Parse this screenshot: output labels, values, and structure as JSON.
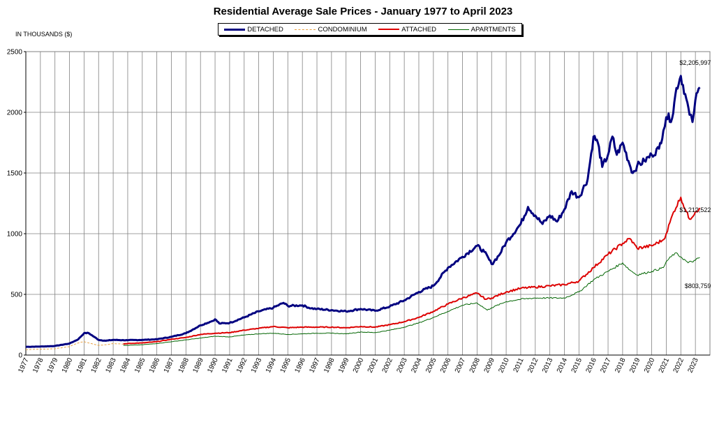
{
  "chart_data": {
    "type": "line",
    "title": "Residential Average Sale Prices  -  January 1977 to April 2023",
    "ylabel": "IN THOUSANDS ($)",
    "ylim": [
      0,
      2500
    ],
    "yticks": [
      "0",
      "500",
      "1000",
      "1500",
      "2000",
      "2500"
    ],
    "x_tick_labels": [
      "1977",
      "1978",
      "1979",
      "1980",
      "1981",
      "1982",
      "1983",
      "1984",
      "1985",
      "1986",
      "1987",
      "1988",
      "1989",
      "1990",
      "1991",
      "1992",
      "1993",
      "1994",
      "1995",
      "1996",
      "1997",
      "1998",
      "1999",
      "2000",
      "2001",
      "2002",
      "2003",
      "2004",
      "2005",
      "2006",
      "2007",
      "2008",
      "2009",
      "2010",
      "2011",
      "2012",
      "2013",
      "2014",
      "2015",
      "2016",
      "2017",
      "2018",
      "2019",
      "2020",
      "2021",
      "2022",
      "2023"
    ],
    "grid": "vertical per year, horizontal per 500",
    "legend_position": "top-center",
    "series": [
      {
        "name": "DETACHED",
        "color": "#000080",
        "style": "solid-thick",
        "points": [
          [
            1977,
            68
          ],
          [
            1978,
            70
          ],
          [
            1979,
            75
          ],
          [
            1980,
            95
          ],
          [
            1980.6,
            130
          ],
          [
            1981,
            180
          ],
          [
            1981.3,
            182
          ],
          [
            1981.7,
            150
          ],
          [
            1982,
            125
          ],
          [
            1982.5,
            118
          ],
          [
            1983,
            125
          ],
          [
            1984,
            122
          ],
          [
            1985,
            125
          ],
          [
            1986,
            130
          ],
          [
            1987,
            150
          ],
          [
            1988,
            180
          ],
          [
            1989,
            245
          ],
          [
            1989.8,
            280
          ],
          [
            1990,
            295
          ],
          [
            1990.3,
            260
          ],
          [
            1991,
            265
          ],
          [
            1992,
            310
          ],
          [
            1993,
            360
          ],
          [
            1994,
            390
          ],
          [
            1994.7,
            430
          ],
          [
            1995,
            405
          ],
          [
            1996,
            410
          ],
          [
            1996.6,
            385
          ],
          [
            1997,
            380
          ],
          [
            1998,
            370
          ],
          [
            1999,
            360
          ],
          [
            2000,
            380
          ],
          [
            2001,
            365
          ],
          [
            2002,
            400
          ],
          [
            2003,
            450
          ],
          [
            2004,
            520
          ],
          [
            2005,
            570
          ],
          [
            2006,
            720
          ],
          [
            2007,
            810
          ],
          [
            2008,
            900
          ],
          [
            2008.5,
            850
          ],
          [
            2009,
            750
          ],
          [
            2009.5,
            820
          ],
          [
            2010,
            930
          ],
          [
            2011,
            1080
          ],
          [
            2011.5,
            1220
          ],
          [
            2012,
            1150
          ],
          [
            2012.5,
            1080
          ],
          [
            2013,
            1150
          ],
          [
            2013.5,
            1100
          ],
          [
            2014,
            1200
          ],
          [
            2014.5,
            1350
          ],
          [
            2015,
            1300
          ],
          [
            2015.6,
            1450
          ],
          [
            2016,
            1800
          ],
          [
            2016.3,
            1750
          ],
          [
            2016.6,
            1550
          ],
          [
            2017,
            1650
          ],
          [
            2017.3,
            1800
          ],
          [
            2017.6,
            1650
          ],
          [
            2018,
            1750
          ],
          [
            2018.4,
            1600
          ],
          [
            2018.7,
            1500
          ],
          [
            2019,
            1560
          ],
          [
            2019.5,
            1600
          ],
          [
            2020,
            1650
          ],
          [
            2020.5,
            1700
          ],
          [
            2020.8,
            1850
          ],
          [
            2021,
            1960
          ],
          [
            2021.4,
            1950
          ],
          [
            2021.7,
            2200
          ],
          [
            2022,
            2300
          ],
          [
            2022.3,
            2150
          ],
          [
            2022.6,
            1980
          ],
          [
            2022.8,
            1920
          ],
          [
            2023,
            2100
          ],
          [
            2023.3,
            2205.997
          ]
        ]
      },
      {
        "name": "CONDOMINIUM",
        "color": "#E8A040",
        "style": "dashed",
        "points": [
          [
            1977,
            45
          ],
          [
            1978,
            48
          ],
          [
            1979,
            52
          ],
          [
            1980,
            70
          ],
          [
            1980.6,
            100
          ],
          [
            1981,
            110
          ],
          [
            1981.5,
            95
          ],
          [
            1982,
            80
          ],
          [
            1982.5,
            85
          ],
          [
            1983,
            95
          ],
          [
            1983.7,
            90
          ]
        ]
      },
      {
        "name": "ATTACHED",
        "color": "#DD0000",
        "style": "solid",
        "points": [
          [
            1983.7,
            92
          ],
          [
            1984,
            95
          ],
          [
            1985,
            100
          ],
          [
            1986,
            110
          ],
          [
            1987,
            130
          ],
          [
            1988,
            145
          ],
          [
            1989,
            170
          ],
          [
            1990,
            180
          ],
          [
            1991,
            185
          ],
          [
            1992,
            205
          ],
          [
            1993,
            220
          ],
          [
            1994,
            235
          ],
          [
            1995,
            225
          ],
          [
            1996,
            230
          ],
          [
            1997,
            230
          ],
          [
            1998,
            230
          ],
          [
            1999,
            225
          ],
          [
            2000,
            235
          ],
          [
            2001,
            230
          ],
          [
            2002,
            250
          ],
          [
            2003,
            275
          ],
          [
            2004,
            310
          ],
          [
            2005,
            360
          ],
          [
            2006,
            420
          ],
          [
            2007,
            470
          ],
          [
            2008,
            510
          ],
          [
            2008.6,
            460
          ],
          [
            2009,
            470
          ],
          [
            2010,
            520
          ],
          [
            2011,
            550
          ],
          [
            2012,
            560
          ],
          [
            2013,
            570
          ],
          [
            2014,
            580
          ],
          [
            2015,
            610
          ],
          [
            2016,
            720
          ],
          [
            2017,
            830
          ],
          [
            2018,
            920
          ],
          [
            2018.5,
            960
          ],
          [
            2019,
            880
          ],
          [
            2020,
            900
          ],
          [
            2020.8,
            950
          ],
          [
            2021,
            1000
          ],
          [
            2021.5,
            1180
          ],
          [
            2022,
            1300
          ],
          [
            2022.3,
            1200
          ],
          [
            2022.6,
            1120
          ],
          [
            2023,
            1180
          ],
          [
            2023.3,
            1212.522
          ]
        ]
      },
      {
        "name": "APARTMENTS",
        "color": "#006400",
        "style": "solid-thin",
        "points": [
          [
            1983.7,
            80
          ],
          [
            1984,
            80
          ],
          [
            1985,
            85
          ],
          [
            1986,
            95
          ],
          [
            1987,
            110
          ],
          [
            1988,
            125
          ],
          [
            1989,
            140
          ],
          [
            1990,
            155
          ],
          [
            1991,
            150
          ],
          [
            1992,
            165
          ],
          [
            1993,
            175
          ],
          [
            1994,
            180
          ],
          [
            1995,
            170
          ],
          [
            1996,
            175
          ],
          [
            1997,
            180
          ],
          [
            1998,
            180
          ],
          [
            1999,
            175
          ],
          [
            2000,
            190
          ],
          [
            2001,
            185
          ],
          [
            2002,
            205
          ],
          [
            2003,
            230
          ],
          [
            2004,
            265
          ],
          [
            2005,
            310
          ],
          [
            2006,
            360
          ],
          [
            2007,
            410
          ],
          [
            2008,
            430
          ],
          [
            2008.7,
            370
          ],
          [
            2009,
            390
          ],
          [
            2010,
            440
          ],
          [
            2011,
            460
          ],
          [
            2012,
            470
          ],
          [
            2013,
            470
          ],
          [
            2014,
            470
          ],
          [
            2015,
            520
          ],
          [
            2016,
            620
          ],
          [
            2017,
            690
          ],
          [
            2018,
            760
          ],
          [
            2018.5,
            700
          ],
          [
            2019,
            660
          ],
          [
            2020,
            690
          ],
          [
            2020.8,
            720
          ],
          [
            2021,
            770
          ],
          [
            2021.6,
            840
          ],
          [
            2022,
            810
          ],
          [
            2022.5,
            760
          ],
          [
            2023,
            780
          ],
          [
            2023.3,
            803.759
          ]
        ]
      }
    ],
    "annotations": [
      {
        "text": "$2,205,997",
        "series": "DETACHED"
      },
      {
        "text": "$1,212,522",
        "series": "ATTACHED"
      },
      {
        "text": "$803,759",
        "series": "APARTMENTS"
      }
    ]
  }
}
